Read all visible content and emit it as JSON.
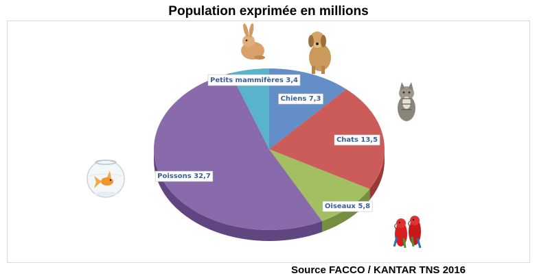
{
  "chart_data": {
    "type": "pie",
    "title": "Population exprimée en millions",
    "source": "Source FACCO / KANTAR TNS 2016",
    "slices": [
      {
        "label": "Chiens",
        "value": 7.3,
        "display": "Chiens 7,3",
        "color": "#5b87c5",
        "side": "#3d6196",
        "text_color": "#3a5e9c",
        "icon": "dog-icon"
      },
      {
        "label": "Chats",
        "value": 13.5,
        "display": "Chats 13,5",
        "color": "#c9524f",
        "side": "#9a3a38",
        "text_color": "#3a5e9c",
        "icon": "cat-icon"
      },
      {
        "label": "Oiseaux",
        "value": 5.8,
        "display": "Oiseaux 5,8",
        "color": "#9dbb58",
        "side": "#768e3f",
        "text_color": "#3a5e9c",
        "icon": "parrot-icon"
      },
      {
        "label": "Poissons",
        "value": 32.7,
        "display": "Poissons 32,7",
        "color": "#8262a6",
        "side": "#5f4680",
        "text_color": "#3a5e9c",
        "icon": "goldfish-bowl-icon"
      },
      {
        "label": "Petits mammifères",
        "value": 3.4,
        "display": "Petits mammifères 3,4",
        "color": "#4eafc8",
        "side": "#36849a",
        "text_color": "#3a5e9c",
        "icon": "rabbit-icon"
      }
    ]
  }
}
